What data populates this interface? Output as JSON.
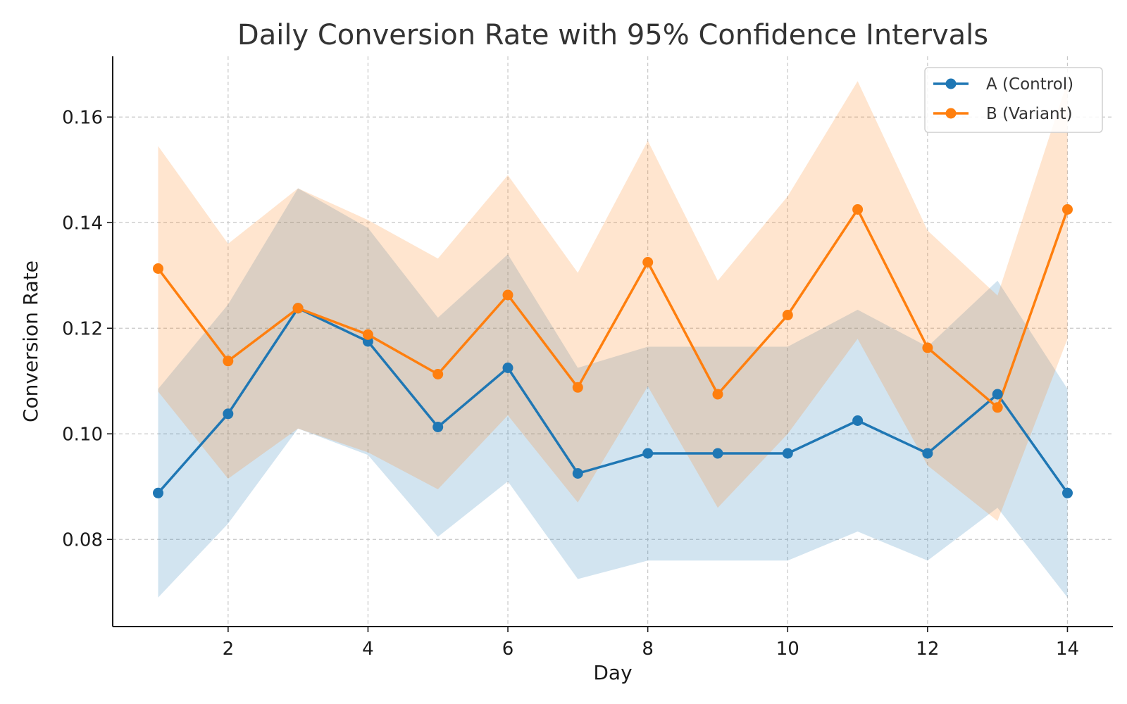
{
  "chart_data": {
    "type": "line",
    "title": "Daily Conversion Rate with 95% Confidence Intervals",
    "xlabel": "Day",
    "ylabel": "Conversion Rate",
    "x": [
      1,
      2,
      3,
      4,
      5,
      6,
      7,
      8,
      9,
      10,
      11,
      12,
      13,
      14
    ],
    "xlim": [
      0.35,
      14.65
    ],
    "ylim": [
      0.0635,
      0.1715
    ],
    "xticks": [
      2,
      4,
      6,
      8,
      10,
      12,
      14
    ],
    "xtick_labels": [
      "2",
      "4",
      "6",
      "8",
      "10",
      "12",
      "14"
    ],
    "yticks": [
      0.08,
      0.1,
      0.12,
      0.14,
      0.16
    ],
    "ytick_labels": [
      "0.08",
      "0.10",
      "0.12",
      "0.14",
      "0.16"
    ],
    "grid": true,
    "legend_position": "top-right",
    "series": [
      {
        "name": "A (Control)",
        "color": "#1f77b4",
        "band_color": "#1f77b4",
        "values": [
          0.0888,
          0.1038,
          0.1238,
          0.1175,
          0.1013,
          0.1125,
          0.0925,
          0.0963,
          0.0963,
          0.0963,
          0.1025,
          0.0963,
          0.1075,
          0.0888
        ],
        "ci_lower": [
          0.069,
          0.083,
          0.101,
          0.096,
          0.0805,
          0.091,
          0.0725,
          0.076,
          0.076,
          0.076,
          0.0815,
          0.076,
          0.086,
          0.069
        ],
        "ci_upper": [
          0.1085,
          0.1245,
          0.1465,
          0.139,
          0.122,
          0.134,
          0.1125,
          0.1165,
          0.1165,
          0.1165,
          0.1235,
          0.1165,
          0.129,
          0.1085
        ]
      },
      {
        "name": "B (Variant)",
        "color": "#ff7f0e",
        "band_color": "#ff7f0e",
        "values": [
          0.1313,
          0.1138,
          0.1238,
          0.1188,
          0.1113,
          0.1263,
          0.1088,
          0.1325,
          0.1075,
          0.1225,
          0.1425,
          0.1163,
          0.105,
          0.1425
        ],
        "ci_lower": [
          0.108,
          0.0915,
          0.101,
          0.0965,
          0.0895,
          0.1035,
          0.087,
          0.109,
          0.086,
          0.1,
          0.118,
          0.094,
          0.0835,
          0.118
        ],
        "ci_upper": [
          0.1545,
          0.136,
          0.1465,
          0.1405,
          0.1332,
          0.149,
          0.1305,
          0.1555,
          0.129,
          0.145,
          0.1668,
          0.1385,
          0.1262,
          0.1668
        ]
      }
    ]
  }
}
